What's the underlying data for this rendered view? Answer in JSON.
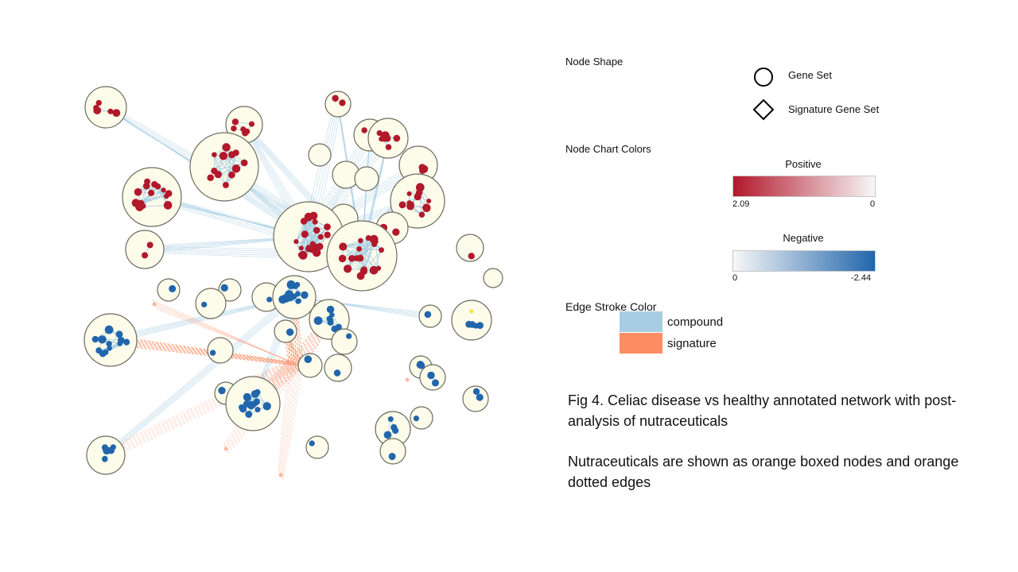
{
  "legend": {
    "node_shape": {
      "heading": "Node Shape",
      "items": [
        {
          "shape": "circle",
          "label": "Gene Set"
        },
        {
          "shape": "diamond",
          "label": "Signature Gene Set"
        }
      ]
    },
    "node_chart_colors": {
      "heading": "Node Chart Colors",
      "positive": {
        "title": "Positive",
        "min_label": "2.09",
        "max_label": "0",
        "color_from": "#b2182b",
        "color_to": "#f7f7f7"
      },
      "negative": {
        "title": "Negative",
        "min_label": "0",
        "max_label": "-2.44",
        "color_from": "#f7f7f7",
        "color_to": "#2166ac"
      }
    },
    "edge_stroke": {
      "heading": "Edge Stroke Color",
      "items": [
        {
          "label": "compound",
          "color": "#a6cde2"
        },
        {
          "label": "signature",
          "color": "#fc8d62"
        }
      ]
    }
  },
  "caption": {
    "title": "Fig 4. Celiac disease vs healthy annotated network with post-analysis of nutraceuticals",
    "note": "Nutraceuticals are shown as orange boxed nodes and orange dotted edges"
  },
  "colors": {
    "cluster_fill": "#fdfcea",
    "cluster_stroke": "#6b6b5f",
    "positive_node": "#b2182b",
    "negative_node": "#2166ac",
    "compound_edge": "#a6cde2",
    "signature_edge": "#fc8d62"
  }
}
